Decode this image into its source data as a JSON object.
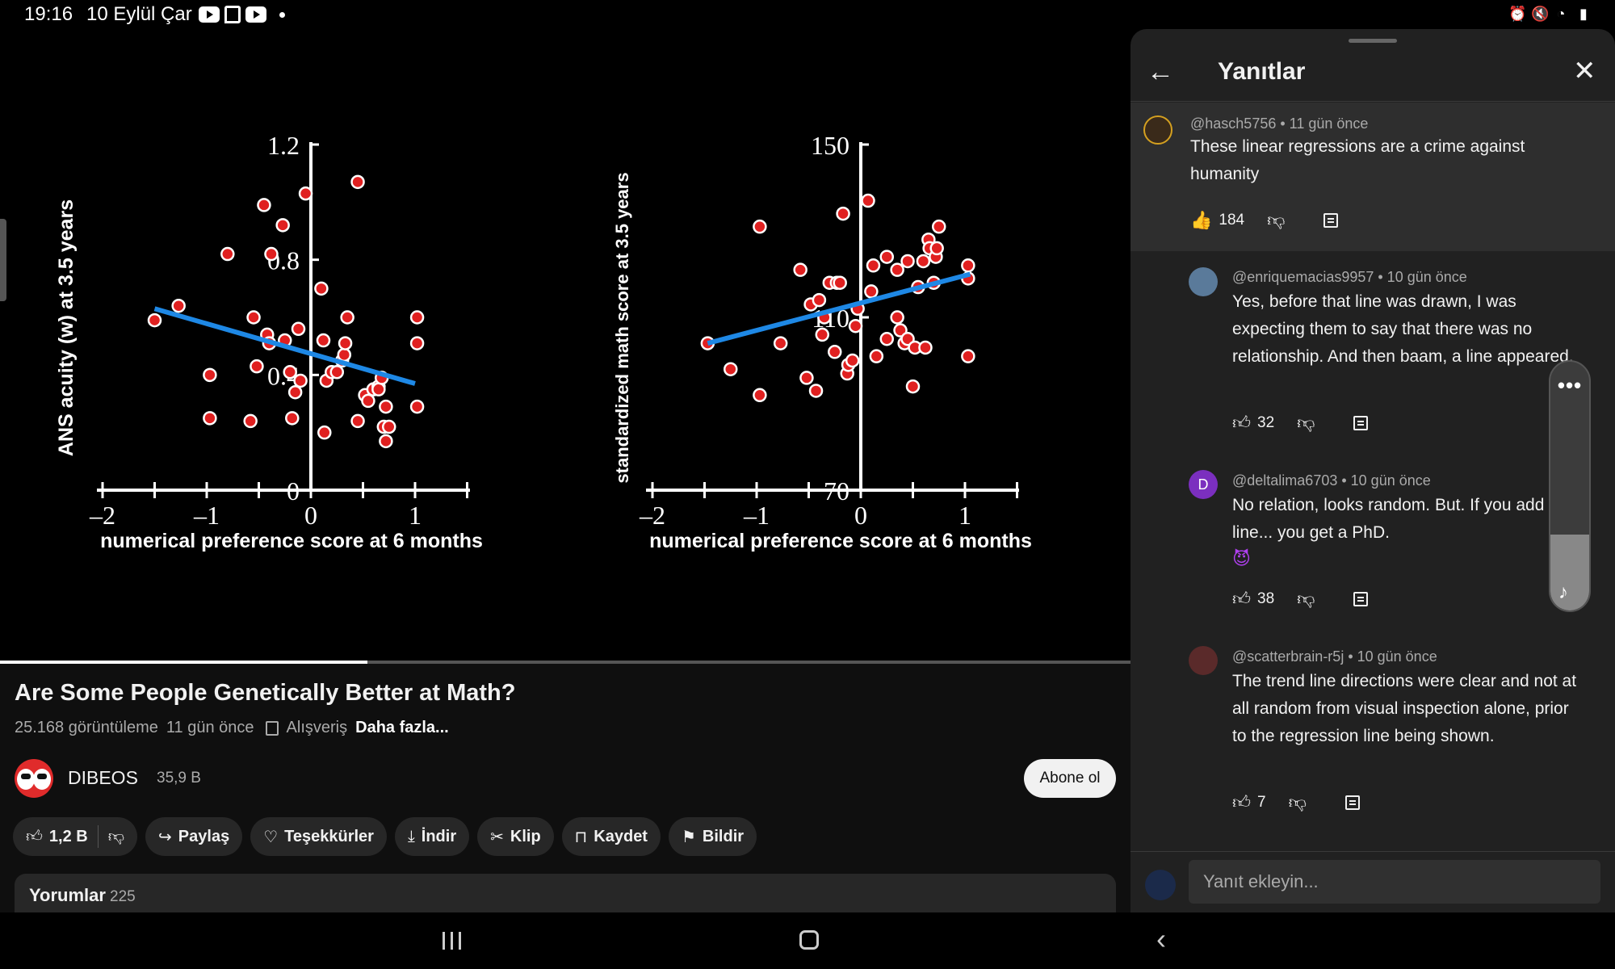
{
  "status_bar": {
    "time": "19:16",
    "date": "10 Eylül Çar",
    "app_icons": [
      "youtube-icon",
      "twitch-icon",
      "youtube-icon"
    ],
    "right_icons": [
      "alarm-icon",
      "mute-icon",
      "wifi-icon",
      "battery-icon"
    ]
  },
  "video": {
    "progress_fraction": 0.325
  },
  "chart_data": [
    {
      "type": "scatter",
      "xlabel": "numerical preference score at 6 months",
      "ylabel": "ANS acuity (w) at 3.5 years",
      "xlim": [
        -2,
        1.5
      ],
      "ylim": [
        0,
        1.2
      ],
      "x_ticks": [
        "–2",
        "–1",
        "0",
        "1"
      ],
      "y_ticks": [
        "0",
        "0.4",
        "0.8",
        "1.2"
      ],
      "points": [
        [
          -1.5,
          0.59
        ],
        [
          -1.27,
          0.64
        ],
        [
          -0.97,
          0.4
        ],
        [
          -0.97,
          0.25
        ],
        [
          -0.8,
          0.82
        ],
        [
          -0.58,
          0.24
        ],
        [
          -0.55,
          0.6
        ],
        [
          -0.52,
          0.43
        ],
        [
          -0.45,
          0.99
        ],
        [
          -0.42,
          0.54
        ],
        [
          -0.4,
          0.51
        ],
        [
          -0.38,
          0.82
        ],
        [
          -0.27,
          0.92
        ],
        [
          -0.25,
          0.52
        ],
        [
          -0.2,
          0.41
        ],
        [
          -0.18,
          0.25
        ],
        [
          -0.15,
          0.34
        ],
        [
          -0.12,
          0.56
        ],
        [
          -0.1,
          0.38
        ],
        [
          -0.05,
          1.03
        ],
        [
          0.1,
          0.7
        ],
        [
          0.12,
          0.52
        ],
        [
          0.13,
          0.2
        ],
        [
          0.15,
          0.38
        ],
        [
          0.2,
          0.41
        ],
        [
          0.25,
          0.41
        ],
        [
          0.3,
          0.45
        ],
        [
          0.32,
          0.47
        ],
        [
          0.33,
          0.51
        ],
        [
          0.35,
          0.6
        ],
        [
          0.45,
          0.24
        ],
        [
          0.45,
          1.07
        ],
        [
          0.52,
          0.33
        ],
        [
          0.55,
          0.31
        ],
        [
          0.6,
          0.35
        ],
        [
          0.65,
          0.36
        ],
        [
          0.65,
          0.35
        ],
        [
          0.68,
          0.39
        ],
        [
          0.7,
          0.22
        ],
        [
          0.72,
          0.29
        ],
        [
          0.72,
          0.17
        ],
        [
          0.75,
          0.22
        ],
        [
          1.02,
          0.6
        ],
        [
          1.02,
          0.51
        ],
        [
          1.02,
          0.29
        ]
      ],
      "trend_line": {
        "x": [
          -1.5,
          1.0
        ],
        "y": [
          0.63,
          0.37
        ]
      },
      "point_color": "#e02020",
      "line_color": "#1e88e5"
    },
    {
      "type": "scatter",
      "xlabel": "numerical preference score at 6 months",
      "ylabel": "standardized math score at 3.5 years",
      "xlim": [
        -2,
        1.5
      ],
      "ylim": [
        70,
        150
      ],
      "x_ticks": [
        "–2",
        "–1",
        "0",
        "1"
      ],
      "y_ticks": [
        "70",
        "110",
        "150"
      ],
      "points": [
        [
          -1.47,
          104
        ],
        [
          -1.25,
          98
        ],
        [
          -0.97,
          92
        ],
        [
          -0.97,
          131
        ],
        [
          -0.77,
          104
        ],
        [
          -0.58,
          121
        ],
        [
          -0.52,
          96
        ],
        [
          -0.48,
          113
        ],
        [
          -0.43,
          93
        ],
        [
          -0.4,
          114
        ],
        [
          -0.37,
          106
        ],
        [
          -0.35,
          110
        ],
        [
          -0.3,
          118
        ],
        [
          -0.25,
          102
        ],
        [
          -0.23,
          118
        ],
        [
          -0.2,
          118
        ],
        [
          -0.17,
          134
        ],
        [
          -0.13,
          97
        ],
        [
          -0.12,
          99
        ],
        [
          -0.08,
          100
        ],
        [
          -0.05,
          108
        ],
        [
          -0.03,
          112
        ],
        [
          0.07,
          137
        ],
        [
          0.1,
          116
        ],
        [
          0.12,
          122
        ],
        [
          0.15,
          101
        ],
        [
          0.25,
          105
        ],
        [
          0.25,
          124
        ],
        [
          0.35,
          110
        ],
        [
          0.35,
          121
        ],
        [
          0.38,
          107
        ],
        [
          0.42,
          104
        ],
        [
          0.45,
          123
        ],
        [
          0.45,
          105
        ],
        [
          0.5,
          94
        ],
        [
          0.52,
          103
        ],
        [
          0.55,
          117
        ],
        [
          0.6,
          123
        ],
        [
          0.62,
          103
        ],
        [
          0.65,
          128
        ],
        [
          0.66,
          126
        ],
        [
          0.7,
          118
        ],
        [
          0.72,
          124
        ],
        [
          0.73,
          126
        ],
        [
          0.75,
          131
        ],
        [
          1.03,
          122
        ],
        [
          1.03,
          101
        ],
        [
          1.03,
          119
        ]
      ],
      "trend_line": {
        "x": [
          -1.47,
          1.05
        ],
        "y": [
          104,
          120
        ]
      },
      "point_color": "#e02020",
      "line_color": "#1e88e5"
    }
  ],
  "video_info": {
    "title": "Are Some People Genetically Better at Math?",
    "views": "25.168 görüntüleme",
    "age": "11 gün önce",
    "shopping": "Alışveriş",
    "more": "Daha fazla..."
  },
  "channel": {
    "name": "DIBEOS",
    "subscribers": "35,9 B",
    "subscribe_label": "Abone ol"
  },
  "actions": {
    "like_count": "1,2 B",
    "share": "Paylaş",
    "thanks": "Teşekkürler",
    "download": "İndir",
    "clip": "Klip",
    "save": "Kaydet",
    "report": "Bildir"
  },
  "comments_section": {
    "label": "Yorumlar",
    "count": "225"
  },
  "replies_panel": {
    "title": "Yanıtlar",
    "parent_comment": {
      "author": "@hasch5756 • 11 gün önce",
      "text": "These linear regressions are a crime against humanity",
      "likes": "184"
    },
    "replies": [
      {
        "author": "@enriquemacias9957 • 10 gün önce",
        "text": "Yes, before that line was drawn, I was expecting them to say that there was no relationship. And then baam, a line appeared.",
        "likes": "32"
      },
      {
        "author": "@deltalima6703 • 10 gün önce",
        "avatar_letter": "D",
        "text": "No relation, looks random.  But.  If you add a line...  you get a PhD.",
        "emoji": "😈",
        "likes": "38"
      },
      {
        "author": "@scatterbrain-r5j • 10 gün önce",
        "text": "The trend line directions were clear and not at all random from visual inspection alone, prior to the regression line being shown.",
        "likes": "7"
      }
    ],
    "reply_placeholder": "Yanıt ekleyin..."
  },
  "colors": {
    "accent_blue": "#1e88e5",
    "point_red": "#e02020",
    "panel_bg": "#212121",
    "avatar_purple": "#7b2fbf"
  }
}
